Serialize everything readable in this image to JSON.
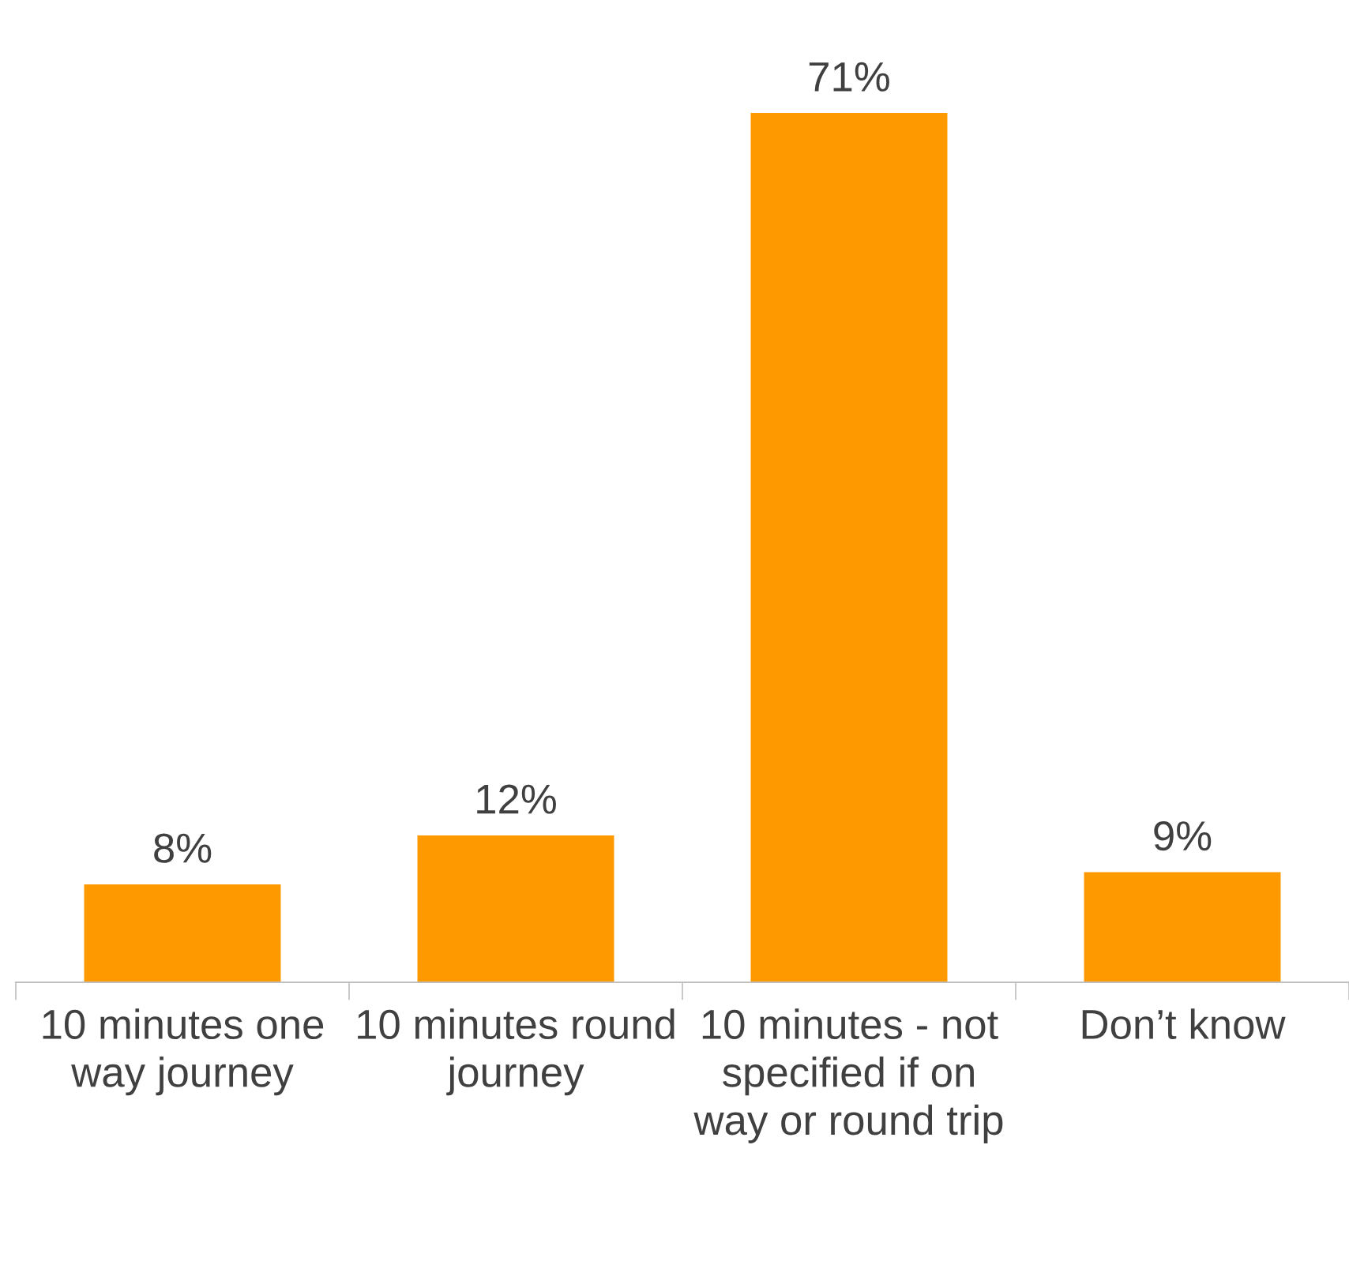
{
  "chart_data": {
    "type": "bar",
    "categories": [
      "10 minutes one way journey",
      "10 minutes round journey",
      "10 minutes - not specified if on way or round trip",
      "Don’t know"
    ],
    "values": [
      8,
      12,
      71,
      9
    ],
    "value_labels": [
      "8%",
      "12%",
      "71%",
      "9%"
    ],
    "color": "#ff9900",
    "grid": false,
    "legend": false
  }
}
